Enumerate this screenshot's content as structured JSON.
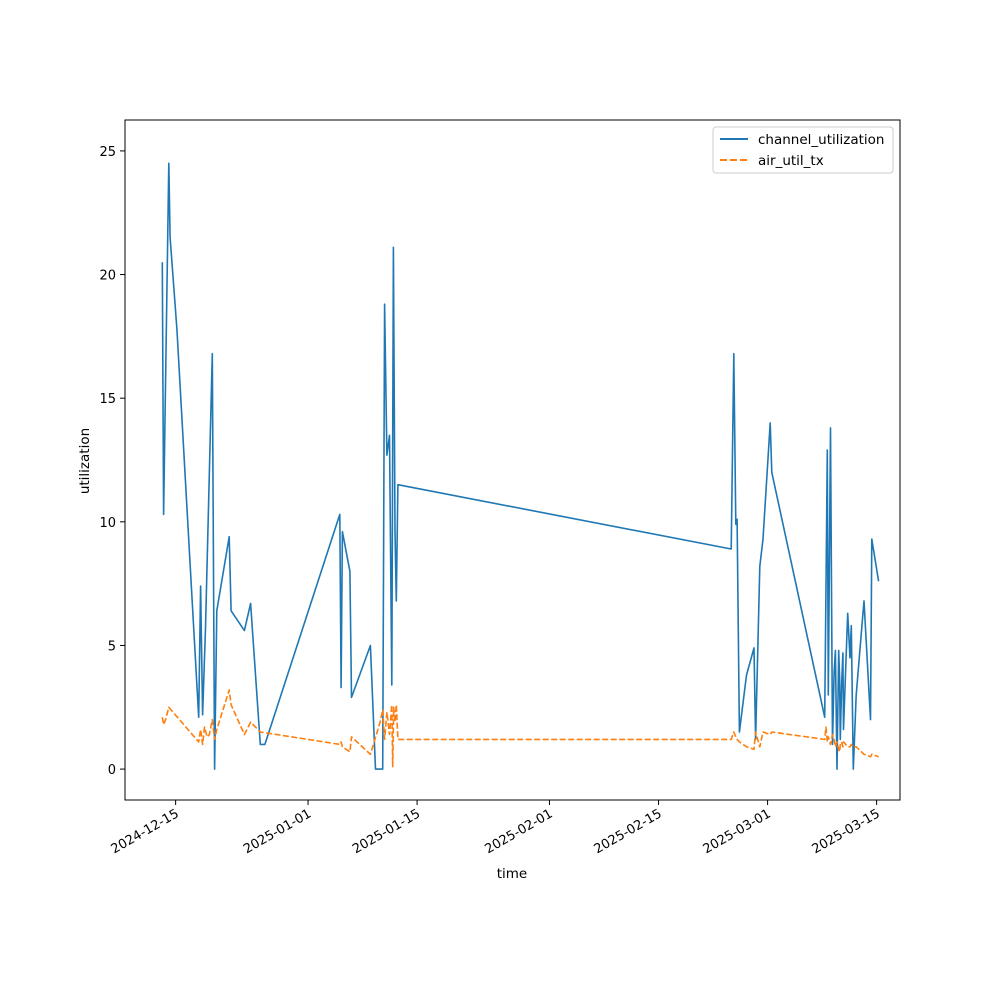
{
  "chart_data": {
    "type": "line",
    "title": "",
    "xlabel": "time",
    "ylabel": "utilization",
    "x_tick_labels": [
      "2024-12-15",
      "2025-01-01",
      "2025-01-15",
      "2025-02-01",
      "2025-02-15",
      "2025-03-01",
      "2025-03-15"
    ],
    "y_ticks": [
      0,
      5,
      10,
      15,
      20,
      25
    ],
    "ylim": [
      -1.25,
      26.25
    ],
    "xlim": [
      "2024-12-08T12:00",
      "2025-03-18T00:00"
    ],
    "legend": "top-right",
    "grid": false,
    "series": [
      {
        "name": "channel_utilization",
        "color": "#1f77b4",
        "dash": "solid",
        "x": [
          "2024-12-13T07:00",
          "2024-12-13T11:00",
          "2024-12-14T03:00",
          "2024-12-14T07:00",
          "2024-12-15T04:00",
          "2024-12-17T23:00",
          "2024-12-18T05:00",
          "2024-12-18T11:00",
          "2024-12-18T20:00",
          "2024-12-19T17:00",
          "2024-12-20T00:00",
          "2024-12-20T07:00",
          "2024-12-21T21:00",
          "2024-12-22T03:00",
          "2024-12-23T20:00",
          "2024-12-24T15:00",
          "2024-12-25T21:00",
          "2024-12-26T11:00",
          "2025-01-05T02:00",
          "2025-01-05T06:00",
          "2025-01-05T10:00",
          "2025-01-06T09:00",
          "2025-01-06T14:00",
          "2025-01-09T00:00",
          "2025-01-09T16:00",
          "2025-01-10T14:00",
          "2025-01-10T20:00",
          "2025-01-11T03:00",
          "2025-01-11T11:00",
          "2025-01-11T18:00",
          "2025-01-11T23:00",
          "2025-01-12T04:00",
          "2025-01-12T08:00",
          "2025-01-12T13:00",
          "2025-02-24T08:00",
          "2025-02-24T16:00",
          "2025-02-24T22:00",
          "2025-02-25T02:00",
          "2025-02-25T09:00",
          "2025-02-26T07:00",
          "2025-02-27T06:00",
          "2025-02-27T11:00",
          "2025-02-28T00:00",
          "2025-02-28T10:00",
          "2025-03-01T08:00",
          "2025-03-01T13:00",
          "2025-03-08T08:00",
          "2025-03-08T12:00",
          "2025-03-08T16:00",
          "2025-03-08T19:00",
          "2025-03-09T02:00",
          "2025-03-09T08:00",
          "2025-03-09T13:00",
          "2025-03-09T17:00",
          "2025-03-09T22:00",
          "2025-03-10T03:00",
          "2025-03-10T06:00",
          "2025-03-10T08:00",
          "2025-03-10T12:00",
          "2025-03-10T16:00",
          "2025-03-10T18:00",
          "2025-03-11T07:00",
          "2025-03-11T14:00",
          "2025-03-11T18:00",
          "2025-03-12T00:00",
          "2025-03-12T09:00",
          "2025-03-13T09:00",
          "2025-03-14T05:00",
          "2025-03-14T09:00",
          "2025-03-15T06:00"
        ],
        "y": [
          20.5,
          10.3,
          24.5,
          21.5,
          17.8,
          2.1,
          7.4,
          2.2,
          5.7,
          16.8,
          0.0,
          6.4,
          9.4,
          6.4,
          5.6,
          6.7,
          1.0,
          1.0,
          10.3,
          3.3,
          9.6,
          8.0,
          2.9,
          5.0,
          0.0,
          0.0,
          18.8,
          12.7,
          13.5,
          3.4,
          21.1,
          9.6,
          6.8,
          11.5,
          8.9,
          16.8,
          9.9,
          10.1,
          1.5,
          3.8,
          4.9,
          1.2,
          8.2,
          9.3,
          14.0,
          12.0,
          2.1,
          7.4,
          12.9,
          3.0,
          13.8,
          1.0,
          3.9,
          4.8,
          0.0,
          4.8,
          3.7,
          1.2,
          3.4,
          4.7,
          1.6,
          6.3,
          4.5,
          5.8,
          0.0,
          3.0,
          6.8,
          2.0,
          9.3,
          7.6
        ]
      },
      {
        "name": "air_util_tx",
        "color": "#ff7f0e",
        "dash": "dashed",
        "x": [
          "2024-12-13T07:00",
          "2024-12-13T11:00",
          "2024-12-13T17:00",
          "2024-12-14T03:00",
          "2024-12-17T23:00",
          "2024-12-18T05:00",
          "2024-12-18T11:00",
          "2024-12-18T17:00",
          "2024-12-19T01:00",
          "2024-12-19T08:00",
          "2024-12-19T17:00",
          "2024-12-20T00:00",
          "2024-12-20T07:00",
          "2024-12-21T21:00",
          "2024-12-22T03:00",
          "2024-12-23T20:00",
          "2024-12-24T15:00",
          "2024-12-25T21:00",
          "2025-01-05T02:00",
          "2025-01-05T06:00",
          "2025-01-05T10:00",
          "2025-01-06T09:00",
          "2025-01-06T14:00",
          "2025-01-09T00:00",
          "2025-01-10T06:00",
          "2025-01-10T14:00",
          "2025-01-10T20:00",
          "2025-01-11T03:00",
          "2025-01-11T11:00",
          "2025-01-11T18:00",
          "2025-01-11T21:00",
          "2025-01-12T00:00",
          "2025-01-12T04:00",
          "2025-01-12T08:00",
          "2025-01-12T13:00",
          "2025-02-24T08:00",
          "2025-02-24T16:00",
          "2025-02-24T22:00",
          "2025-02-25T02:00",
          "2025-02-25T09:00",
          "2025-02-26T07:00",
          "2025-02-27T06:00",
          "2025-02-27T11:00",
          "2025-02-28T00:00",
          "2025-02-28T10:00",
          "2025-03-01T08:00",
          "2025-03-01T13:00",
          "2025-03-08T08:00",
          "2025-03-08T12:00",
          "2025-03-08T16:00",
          "2025-03-08T19:00",
          "2025-03-09T02:00",
          "2025-03-09T08:00",
          "2025-03-09T13:00",
          "2025-03-09T17:00",
          "2025-03-09T22:00",
          "2025-03-10T03:00",
          "2025-03-10T06:00",
          "2025-03-10T08:00",
          "2025-03-10T12:00",
          "2025-03-10T16:00",
          "2025-03-10T18:00",
          "2025-03-11T07:00",
          "2025-03-11T14:00",
          "2025-03-11T18:00",
          "2025-03-12T00:00",
          "2025-03-12T09:00",
          "2025-03-13T09:00",
          "2025-03-14T05:00",
          "2025-03-14T09:00",
          "2025-03-15T06:00"
        ],
        "y": [
          2.1,
          1.8,
          2.0,
          2.5,
          1.1,
          1.6,
          1.0,
          1.7,
          1.3,
          1.4,
          2.0,
          1.2,
          1.6,
          3.2,
          2.6,
          1.4,
          1.9,
          1.5,
          1.0,
          1.1,
          0.9,
          0.7,
          1.3,
          0.6,
          1.9,
          2.4,
          1.2,
          2.3,
          1.4,
          2.6,
          0.1,
          2.5,
          1.9,
          2.6,
          1.2,
          1.2,
          1.5,
          1.3,
          1.2,
          1.1,
          0.9,
          0.8,
          1.5,
          0.9,
          1.5,
          1.4,
          1.5,
          1.2,
          1.7,
          1.1,
          1.3,
          1.0,
          1.4,
          1.2,
          0.9,
          1.1,
          0.8,
          0.7,
          1.0,
          1.1,
          0.9,
          1.1,
          0.9,
          0.9,
          1.0,
          0.9,
          0.9,
          0.6,
          0.5,
          0.6,
          0.5
        ]
      }
    ]
  }
}
